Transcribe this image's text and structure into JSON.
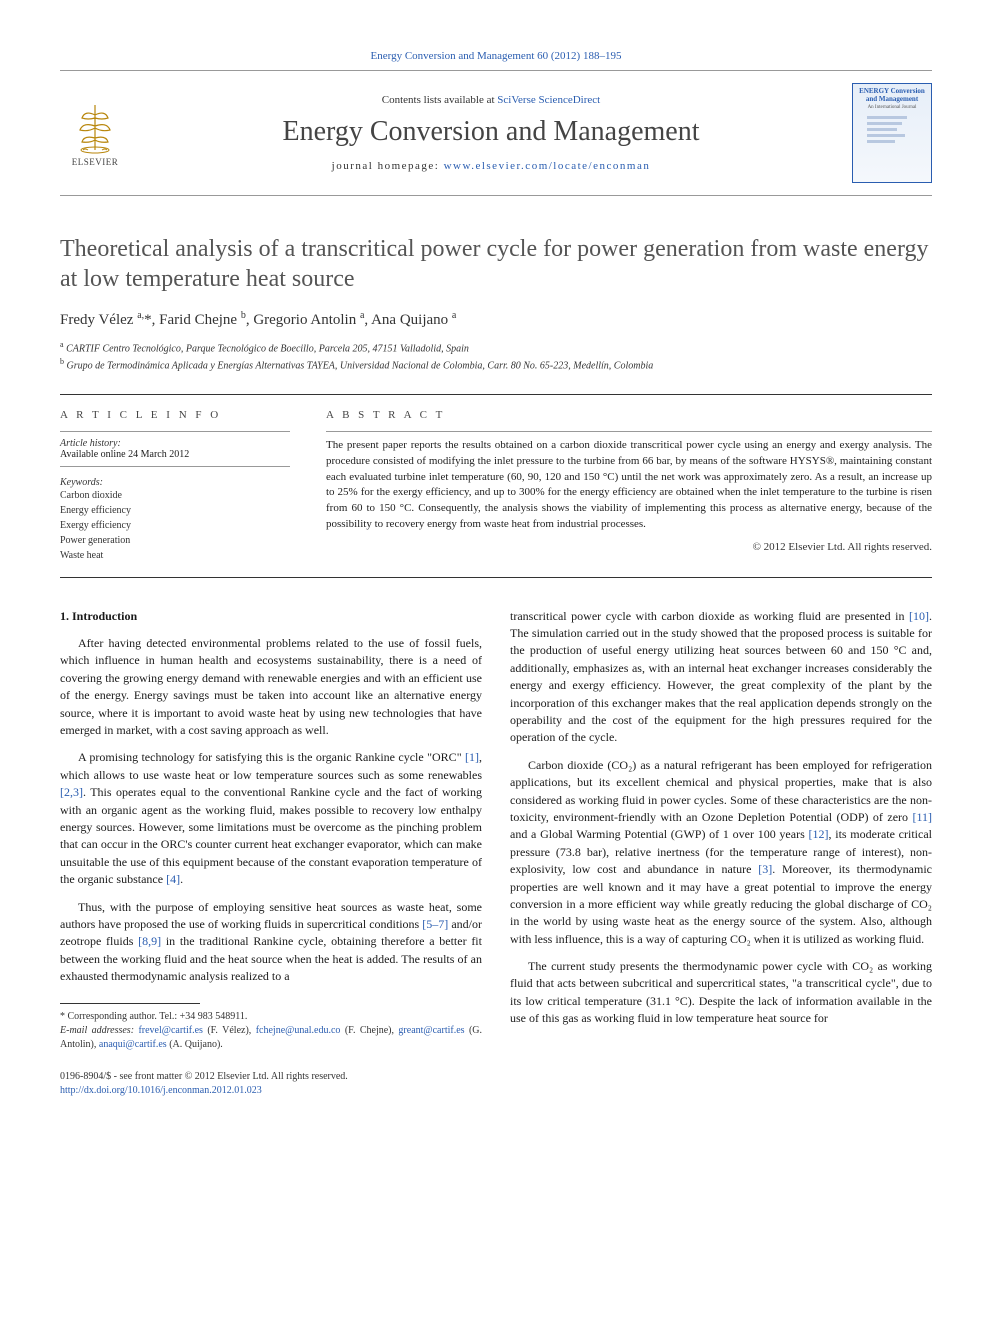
{
  "top_citation": {
    "prefix": "",
    "link": "Energy Conversion and Management 60 (2012) 188–195"
  },
  "masthead": {
    "elsevier": "ELSEVIER",
    "contents_prefix": "Contents lists available at ",
    "contents_link": "SciVerse ScienceDirect",
    "journal_title": "Energy Conversion and Management",
    "homepage_prefix": "journal homepage: ",
    "homepage_link": "www.elsevier.com/locate/enconman",
    "cover_title": "ENERGY Conversion and Management",
    "cover_sub": "An International Journal"
  },
  "article": {
    "title": "Theoretical analysis of a transcritical power cycle for power generation from waste energy at low temperature heat source",
    "authors_html": "Fredy Vélez <sup>a,</sup>*, Farid Chejne <sup>b</sup>, Gregorio Antolin <sup>a</sup>, Ana Quijano <sup>a</sup>",
    "affiliations": [
      {
        "sup": "a",
        "text": "CARTIF Centro Tecnológico, Parque Tecnológico de Boecillo, Parcela 205, 47151 Valladolid, Spain"
      },
      {
        "sup": "b",
        "text": "Grupo de Termodinámica Aplicada y Energías Alternativas TAYEA, Universidad Nacional de Colombia, Carr. 80 No. 65-223, Medellín, Colombia"
      }
    ]
  },
  "info": {
    "left_heading": "A R T I C L E   I N F O",
    "right_heading": "A B S T R A C T",
    "history_label": "Article history:",
    "history_text": "Available online 24 March 2012",
    "kw_label": "Keywords:",
    "keywords": [
      "Carbon dioxide",
      "Energy efficiency",
      "Exergy efficiency",
      "Power generation",
      "Waste heat"
    ],
    "abstract": "The present paper reports the results obtained on a carbon dioxide transcritical power cycle using an energy and exergy analysis. The procedure consisted of modifying the inlet pressure to the turbine from 66 bar, by means of the software HYSYS®, maintaining constant each evaluated turbine inlet temperature (60, 90, 120 and 150 °C) until the net work was approximately zero. As a result, an increase up to 25% for the exergy efficiency, and up to 300% for the energy efficiency are obtained when the inlet temperature to the turbine is risen from 60 to 150 °C. Consequently, the analysis shows the viability of implementing this process as alternative energy, because of the possibility to recovery energy from waste heat from industrial processes.",
    "copyright": "© 2012 Elsevier Ltd. All rights reserved."
  },
  "body": {
    "section1_heading": "1. Introduction",
    "col1_p1": "After having detected environmental problems related to the use of fossil fuels, which influence in human health and ecosystems sustainability, there is a need of covering the growing energy demand with renewable energies and with an efficient use of the energy. Energy savings must be taken into account like an alternative energy source, where it is important to avoid waste heat by using new technologies that have emerged in market, with a cost saving approach as well.",
    "col1_p2_a": "A promising technology for satisfying this is the organic Rankine cycle \"ORC\" ",
    "col1_p2_b": ", which allows to use waste heat or low temperature sources such as some renewables ",
    "col1_p2_c": ". This operates equal to the conventional Rankine cycle and the fact of working with an organic agent as the working fluid, makes possible to recovery low enthalpy energy sources. However, some limitations must be overcome as the pinching problem that can occur in the ORC's counter current heat exchanger evaporator, which can make unsuitable the use of this equipment because of the constant evaporation temperature of the organic substance ",
    "col1_p2_d": ".",
    "col1_p3_a": "Thus, with the purpose of employing sensitive heat sources as waste heat, some authors have proposed the use of working fluids in supercritical conditions ",
    "col1_p3_b": " and/or zeotrope fluids ",
    "col1_p3_c": " in the traditional Rankine cycle, obtaining therefore a better fit between the working fluid and the heat source when the heat is added. The results of an exhausted thermodynamic analysis realized to a",
    "col2_p1_a": "transcritical power cycle with carbon dioxide as working fluid are presented in ",
    "col2_p1_b": ". The simulation carried out in the study showed that the proposed process is suitable for the production of useful energy utilizing heat sources between 60 and 150 °C and, additionally, emphasizes as, with an internal heat exchanger increases considerably the energy and exergy efficiency. However, the great complexity of the plant by the incorporation of this exchanger makes that the real application depends strongly on the operability and the cost of the equipment for the high pressures required for the operation of the cycle.",
    "col2_p2_a": "Carbon dioxide (CO₂) as a natural refrigerant has been employed for refrigeration applications, but its excellent chemical and physical properties, make that is also considered as working fluid in power cycles. Some of these characteristics are the non-toxicity, environment-friendly with an Ozone Depletion Potential (ODP) of zero ",
    "col2_p2_b": " and a Global Warming Potential (GWP) of 1 over 100 years ",
    "col2_p2_c": ", its moderate critical pressure (73.8 bar), relative inertness (for the temperature range of interest), non-explosivity, low cost and abundance in nature ",
    "col2_p2_d": ". Moreover, its thermodynamic properties are well known and it may have a great potential to improve the energy conversion in a more efficient way while greatly reducing the global discharge of CO₂ in the world by using waste heat as the energy source of the system. Also, although with less influence, this is a way of capturing CO₂ when it is utilized as working fluid.",
    "col2_p3": "The current study presents the thermodynamic power cycle with CO₂ as working fluid that acts between subcritical and supercritical states, \"a transcritical cycle\", due to its low critical temperature (31.1 °C). Despite the lack of information available in the use of this gas as working fluid in low temperature heat source for",
    "refs": {
      "r1": "[1]",
      "r23": "[2,3]",
      "r4": "[4]",
      "r57": "[5–7]",
      "r89": "[8,9]",
      "r10": "[10]",
      "r11": "[11]",
      "r12": "[12]",
      "r3": "[3]"
    }
  },
  "footnotes": {
    "corr": "* Corresponding author. Tel.: +34 983 548911.",
    "emails_label": "E-mail addresses: ",
    "emails": [
      {
        "addr": "frevel@cartif.es",
        "who": " (F. Vélez), "
      },
      {
        "addr": "fchejne@unal.edu.co",
        "who": " (F. Chejne), "
      },
      {
        "addr": "greant@cartif.es",
        "who": " (G. Antolin), "
      },
      {
        "addr": "anaqui@cartif.es",
        "who": " (A. Quijano)."
      }
    ]
  },
  "bottom": {
    "line1": "0196-8904/$ - see front matter © 2012 Elsevier Ltd. All rights reserved.",
    "doi": "http://dx.doi.org/10.1016/j.enconman.2012.01.023"
  },
  "style": {
    "link_color": "#2a5db0",
    "text_color": "#1a1a1a",
    "rule_color": "#333333",
    "title_color": "#555555",
    "body_fontsize": 12,
    "abstract_fontsize": 11,
    "title_fontsize": 24,
    "journal_title_fontsize": 28
  }
}
